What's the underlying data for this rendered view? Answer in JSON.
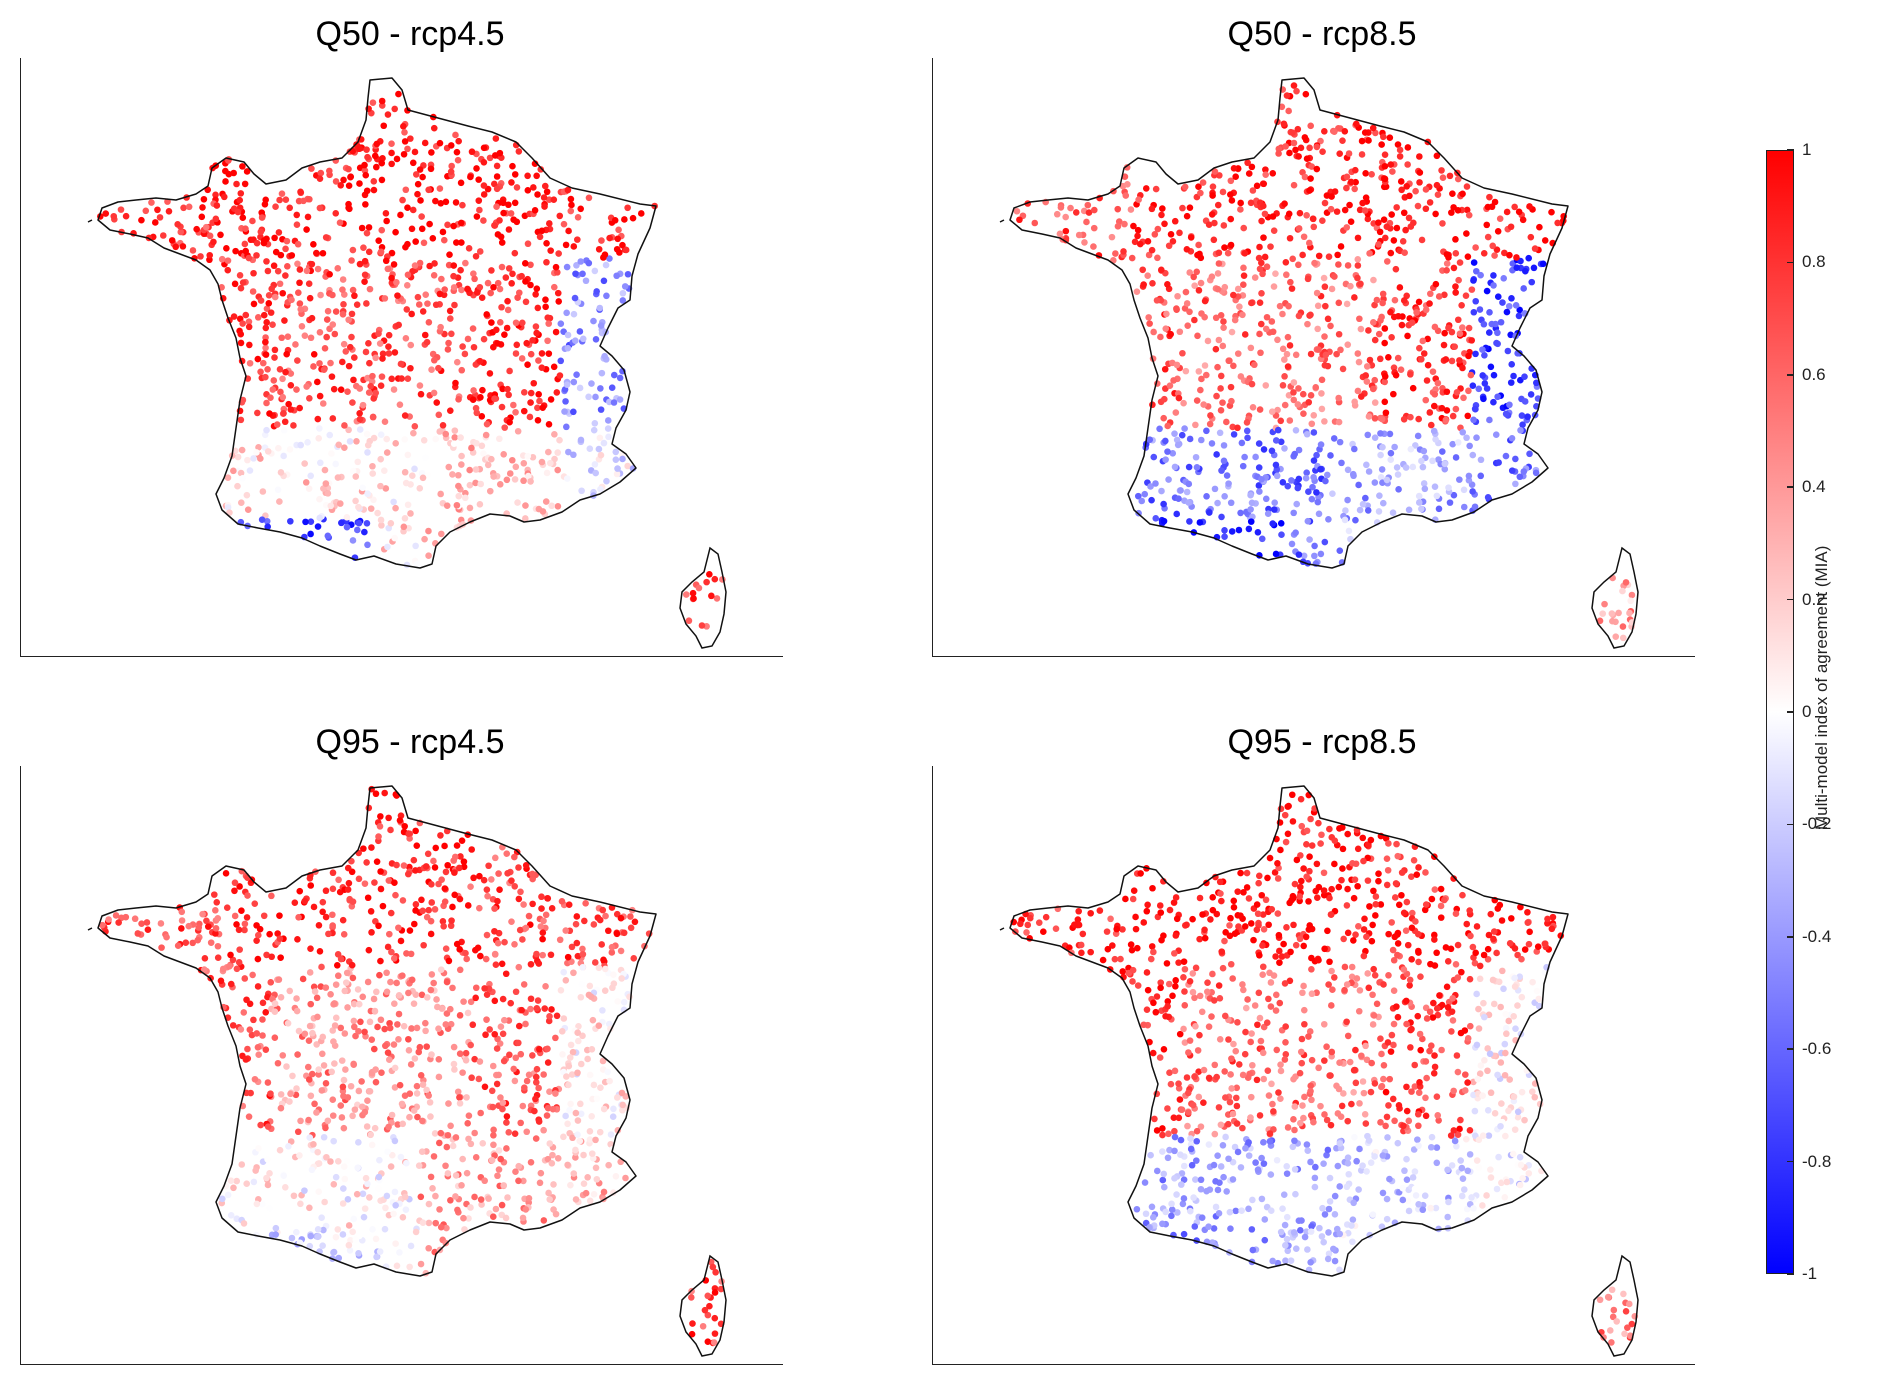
{
  "panels": [
    {
      "title": "Q50 - rcp4.5",
      "region_values": {
        "north": 0.9,
        "east": 0.88,
        "center": 0.72,
        "west": 0.8,
        "southwest": 0.15,
        "alps": -0.45,
        "pyrenees": -0.7,
        "mediterranean": 0.25,
        "corsica": 0.8
      }
    },
    {
      "title": "Q50 - rcp8.5",
      "region_values": {
        "north": 0.85,
        "east": 0.9,
        "center": 0.6,
        "west": 0.7,
        "southwest": -0.55,
        "alps": -0.75,
        "pyrenees": -0.9,
        "mediterranean": -0.35,
        "corsica": 0.35
      }
    },
    {
      "title": "Q95 - rcp4.5",
      "region_values": {
        "north": 0.85,
        "east": 0.75,
        "center": 0.45,
        "west": 0.7,
        "southwest": 0.05,
        "alps": 0.1,
        "pyrenees": -0.15,
        "mediterranean": 0.4,
        "corsica": 0.75
      }
    },
    {
      "title": "Q95 - rcp8.5",
      "region_values": {
        "north": 0.9,
        "east": 0.85,
        "center": 0.6,
        "west": 0.85,
        "southwest": -0.35,
        "alps": 0.05,
        "pyrenees": -0.45,
        "mediterranean": -0.2,
        "corsica": 0.5
      }
    }
  ],
  "colorbar": {
    "label": "Multi-model index of agreement (MIA)",
    "ticks": [
      "1",
      "0.8",
      "0.6",
      "0.4",
      "0.2",
      "0",
      "-0.2",
      "-0.4",
      "-0.6",
      "-0.8",
      "-1"
    ],
    "range": [
      -1,
      1
    ],
    "colors": {
      "max": "#ff0000",
      "mid": "#ffffff",
      "min": "#0000ff"
    }
  }
}
